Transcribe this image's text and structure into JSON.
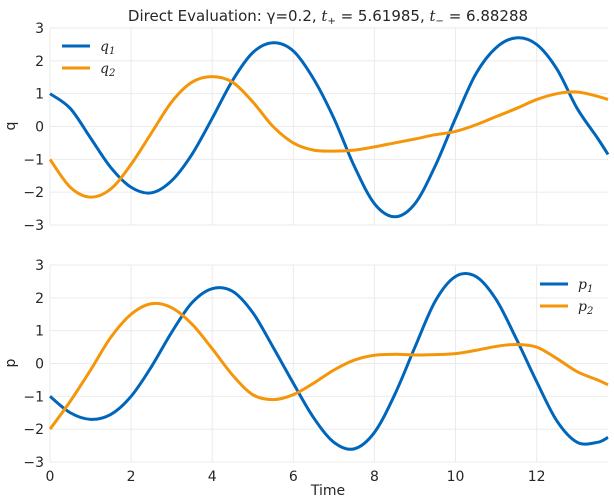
{
  "chart_data": [
    {
      "type": "line",
      "title": "Direct Evaluation: γ=0.2, t₊ = 5.61985, t₋ = 6.88288",
      "title_parts": {
        "prefix": "Direct Evaluation: γ=0.2, ",
        "tplus_base": "t",
        "tplus_sub": "+",
        "tplus_val": " = 5.61985, ",
        "tminus_base": "t",
        "tminus_sub": "−",
        "tminus_val": " = 6.88288"
      },
      "xlabel": "",
      "ylabel": "q",
      "xlim": [
        0,
        13.76
      ],
      "ylim": [
        -3,
        3
      ],
      "xticks": [
        0,
        2,
        4,
        6,
        8,
        10,
        12
      ],
      "yticks": [
        -3,
        -2,
        -1,
        0,
        1,
        2,
        3
      ],
      "ytick_labels": [
        "−3",
        "−2",
        "−1",
        "0",
        "1",
        "2",
        "3"
      ],
      "grid": true,
      "legend_position": "top-left",
      "series": [
        {
          "name": "q1",
          "label_base": "q",
          "label_sub": "1",
          "color": "#0066bb",
          "x": [
            0,
            0.5,
            1.0,
            1.5,
            2.0,
            2.5,
            3.0,
            3.5,
            4.0,
            4.5,
            5.0,
            5.5,
            6.0,
            6.5,
            7.0,
            7.5,
            8.0,
            8.5,
            9.0,
            9.5,
            10.0,
            10.5,
            11.0,
            11.5,
            12.0,
            12.5,
            13.0,
            13.5,
            13.76
          ],
          "y": [
            1.0,
            0.55,
            -0.35,
            -1.25,
            -1.85,
            -2.02,
            -1.65,
            -0.85,
            0.25,
            1.4,
            2.25,
            2.55,
            2.3,
            1.45,
            0.25,
            -1.2,
            -2.35,
            -2.75,
            -2.35,
            -1.2,
            0.25,
            1.6,
            2.4,
            2.7,
            2.5,
            1.75,
            0.55,
            -0.35,
            -0.85
          ]
        },
        {
          "name": "q2",
          "label_base": "q",
          "label_sub": "2",
          "color": "#f5960a",
          "x": [
            0,
            0.5,
            1.0,
            1.5,
            2.0,
            2.5,
            3.0,
            3.5,
            4.0,
            4.5,
            5.0,
            5.5,
            6.0,
            6.5,
            7.0,
            7.5,
            8.0,
            8.5,
            9.0,
            9.5,
            10.0,
            10.5,
            11.0,
            11.5,
            12.0,
            12.5,
            13.0,
            13.5,
            13.76
          ],
          "y": [
            -1.0,
            -1.85,
            -2.15,
            -1.9,
            -1.15,
            -0.2,
            0.75,
            1.35,
            1.52,
            1.35,
            0.75,
            0.0,
            -0.5,
            -0.72,
            -0.75,
            -0.72,
            -0.62,
            -0.5,
            -0.38,
            -0.25,
            -0.15,
            0.05,
            0.3,
            0.55,
            0.82,
            1.0,
            1.05,
            0.92,
            0.82
          ]
        }
      ]
    },
    {
      "type": "line",
      "title": "",
      "xlabel": "Time",
      "ylabel": "p",
      "xlim": [
        0,
        13.76
      ],
      "ylim": [
        -3,
        3
      ],
      "xticks": [
        0,
        2,
        4,
        6,
        8,
        10,
        12
      ],
      "xtick_labels": [
        "0",
        "2",
        "4",
        "6",
        "8",
        "10",
        "12"
      ],
      "yticks": [
        -3,
        -2,
        -1,
        0,
        1,
        2,
        3
      ],
      "ytick_labels": [
        "−3",
        "−2",
        "−1",
        "0",
        "1",
        "2",
        "3"
      ],
      "grid": true,
      "legend_position": "top-right",
      "series": [
        {
          "name": "p1",
          "label_base": "p",
          "label_sub": "1",
          "color": "#0066bb",
          "x": [
            0,
            0.5,
            1.0,
            1.5,
            2.0,
            2.5,
            3.0,
            3.5,
            4.0,
            4.5,
            5.0,
            5.5,
            6.0,
            6.5,
            7.0,
            7.5,
            8.0,
            8.5,
            9.0,
            9.5,
            10.0,
            10.5,
            11.0,
            11.5,
            12.0,
            12.5,
            13.0,
            13.5,
            13.76
          ],
          "y": [
            -1.0,
            -1.5,
            -1.7,
            -1.55,
            -1.0,
            -0.1,
            0.95,
            1.85,
            2.28,
            2.2,
            1.55,
            0.5,
            -0.6,
            -1.65,
            -2.4,
            -2.6,
            -2.1,
            -0.95,
            0.5,
            1.9,
            2.65,
            2.65,
            1.95,
            0.75,
            -0.55,
            -1.75,
            -2.4,
            -2.4,
            -2.25
          ]
        },
        {
          "name": "p2",
          "label_base": "p",
          "label_sub": "2",
          "color": "#f5960a",
          "x": [
            0,
            0.5,
            1.0,
            1.5,
            2.0,
            2.5,
            3.0,
            3.5,
            4.0,
            4.5,
            5.0,
            5.5,
            6.0,
            6.5,
            7.0,
            7.5,
            8.0,
            8.5,
            9.0,
            9.5,
            10.0,
            10.5,
            11.0,
            11.5,
            12.0,
            12.5,
            13.0,
            13.5,
            13.76
          ],
          "y": [
            -2.0,
            -1.15,
            -0.2,
            0.8,
            1.5,
            1.82,
            1.7,
            1.2,
            0.45,
            -0.35,
            -0.95,
            -1.1,
            -0.95,
            -0.6,
            -0.2,
            0.1,
            0.25,
            0.28,
            0.26,
            0.27,
            0.3,
            0.4,
            0.52,
            0.58,
            0.5,
            0.15,
            -0.25,
            -0.5,
            -0.65
          ]
        }
      ]
    }
  ]
}
